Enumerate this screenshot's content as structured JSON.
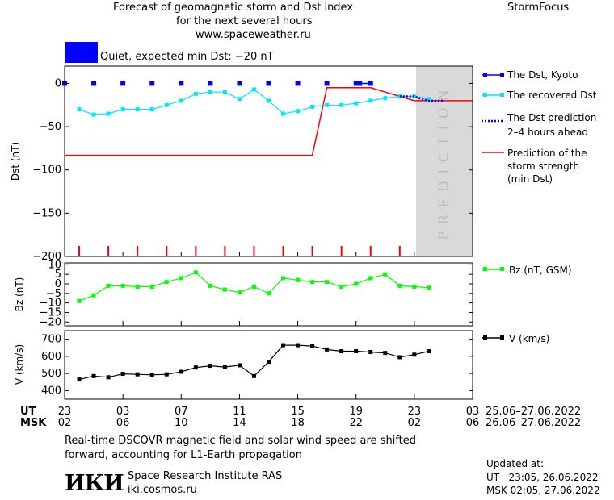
{
  "header": {
    "title_line1": "Forecast of geomagnetic storm and Dst index",
    "title_line2": "for the next several hours",
    "url": "www.spaceweather.ru",
    "brand": "StormFocus",
    "status_color": "#0000ff",
    "status_text": "Quiet, expected min Dst: −20 nT"
  },
  "legend": {
    "dst_kyoto": "The Dst, Kyoto",
    "dst_recovered": "The recovered Dst",
    "dst_prediction_1": "The Dst prediction",
    "dst_prediction_2": "2–4 hours ahead",
    "storm_1": "Prediction of the",
    "storm_2": "storm strength",
    "storm_3": "(min Dst)",
    "bz": "Bz (nT, GSM)",
    "v": "V (km/s)"
  },
  "prediction_label": "PREDICTION",
  "axes": {
    "ut_label": "UT",
    "msk_label": "MSK",
    "ut_ticks": [
      "23",
      "03",
      "07",
      "11",
      "15",
      "19",
      "23",
      "03"
    ],
    "msk_ticks": [
      "02",
      "06",
      "10",
      "14",
      "18",
      "22",
      "02",
      "06"
    ],
    "ut_range": "25.06–27.06.2022",
    "msk_range": "26.06–27.06.2022"
  },
  "footer": {
    "note_line1": "Real-time DSCOVR magnetic field and solar wind speed are shifted",
    "note_line2": "forward, accounting for L1-Earth propagation",
    "logo_text": "ИКИ",
    "institute": "Space Research Institute RAS",
    "site": "iki.cosmos.ru",
    "updated_label": "Updated at:",
    "updated_ut": "UT   23:05, 26.06.2022",
    "updated_msk": "MSK 02:05, 27.06.2022"
  },
  "chart_data": [
    {
      "type": "line",
      "ylabel": "Dst (nT)",
      "ylim": [
        -200,
        20
      ],
      "yticks": [
        0,
        -50,
        -100,
        -150,
        -200
      ],
      "xlim": [
        0,
        56
      ],
      "prediction_start": 48,
      "colors": {
        "kyoto": "#0000ff",
        "recovered": "#00e6ff",
        "prediction": "#0000ff",
        "storm": "#ff0000"
      },
      "series": [
        {
          "name": "The Dst, Kyoto",
          "x": [
            0,
            4,
            8,
            12,
            16,
            20,
            24,
            28,
            32,
            36,
            40,
            40.5,
            42
          ],
          "y": [
            0,
            0,
            0,
            0,
            0,
            0,
            0,
            0,
            0,
            0,
            0,
            0,
            0
          ]
        },
        {
          "name": "The recovered Dst",
          "x": [
            2,
            4,
            6,
            8,
            10,
            12,
            14,
            16,
            18,
            20,
            22,
            24,
            26,
            28,
            30,
            32,
            34,
            36,
            38,
            40,
            42,
            44,
            46,
            48,
            50
          ],
          "y": [
            -30,
            -36,
            -35,
            -30,
            -30,
            -30,
            -25,
            -20,
            -12,
            -10,
            -10,
            -18,
            -7,
            -20,
            -35,
            -32,
            -27,
            -25,
            -25,
            -23,
            -20,
            -17,
            -15,
            -15,
            -18
          ]
        },
        {
          "name": "The Dst prediction",
          "x": [
            46,
            47,
            48,
            49,
            50,
            51,
            52
          ],
          "y": [
            -15,
            -15,
            -15,
            -18,
            -20,
            -20,
            -20
          ]
        },
        {
          "name": "Prediction of the storm strength (min Dst)",
          "x": [
            0,
            34,
            36,
            42,
            48,
            56
          ],
          "y": [
            -83,
            -83,
            -5,
            -5,
            -20,
            -20
          ]
        }
      ],
      "storm_markers_x": [
        2,
        6,
        10,
        14,
        18,
        22,
        26,
        30,
        34,
        38,
        42,
        46
      ]
    },
    {
      "type": "line",
      "ylabel": "Bz (nT)",
      "ylim": [
        -22,
        11
      ],
      "yticks": [
        10,
        5,
        0,
        -5,
        -10,
        -15,
        -20
      ],
      "xlim": [
        0,
        56
      ],
      "color": "#00ff00",
      "series": [
        {
          "name": "Bz (nT, GSM)",
          "x": [
            2,
            4,
            6,
            8,
            10,
            12,
            14,
            16,
            18,
            20,
            22,
            24,
            26,
            28,
            30,
            32,
            34,
            36,
            38,
            40,
            42,
            44,
            46,
            48,
            50
          ],
          "y": [
            -9,
            -6,
            -1,
            -1,
            -1.5,
            -1.5,
            1,
            3,
            6,
            -1,
            -3,
            -4.5,
            -1.5,
            -5,
            3,
            2,
            1,
            1,
            -1.5,
            0,
            3,
            5,
            -1,
            -1.5,
            -2
          ]
        }
      ]
    },
    {
      "type": "line",
      "ylabel": "V (km/s)",
      "ylim": [
        350,
        750
      ],
      "yticks": [
        400,
        500,
        600,
        700
      ],
      "xlim": [
        0,
        56
      ],
      "color": "#000000",
      "series": [
        {
          "name": "V (km/s)",
          "x": [
            2,
            4,
            6,
            8,
            10,
            12,
            14,
            16,
            18,
            20,
            22,
            24,
            26,
            28,
            30,
            32,
            34,
            36,
            38,
            40,
            42,
            44,
            46,
            48,
            50
          ],
          "y": [
            465,
            485,
            478,
            498,
            495,
            492,
            495,
            510,
            535,
            545,
            538,
            548,
            485,
            568,
            665,
            665,
            660,
            640,
            630,
            630,
            625,
            620,
            595,
            610,
            630
          ]
        }
      ]
    }
  ]
}
